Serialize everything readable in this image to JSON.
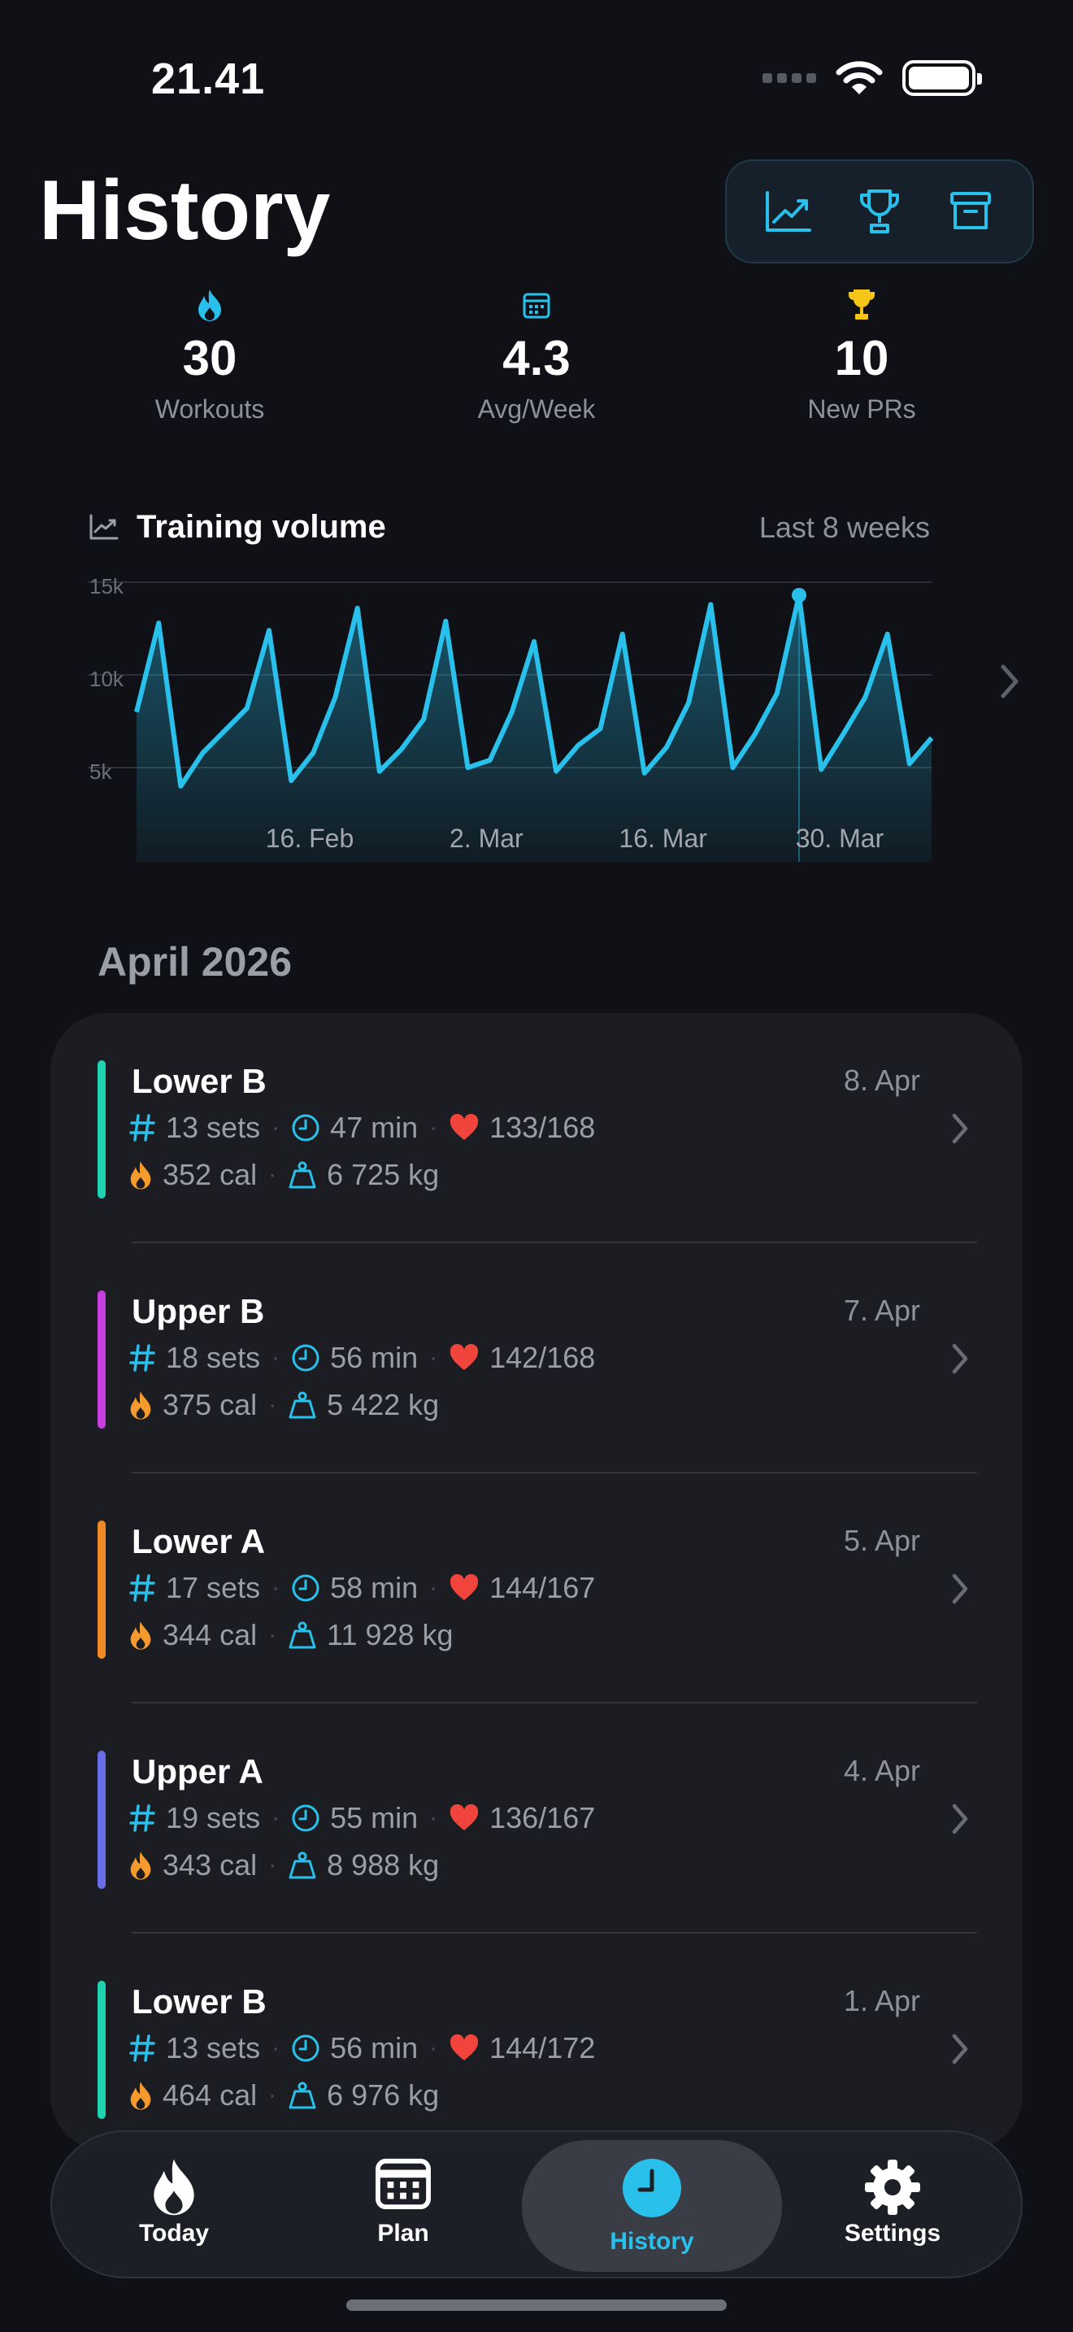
{
  "status_bar": {
    "time": "21.41"
  },
  "header": {
    "title": "History"
  },
  "toolbar": {
    "buttons": [
      {
        "icon": "chart-line-icon"
      },
      {
        "icon": "trophy-icon"
      },
      {
        "icon": "archive-icon"
      }
    ]
  },
  "stats": [
    {
      "value": "30",
      "label": "Workouts",
      "icon": "flame-icon",
      "color": "#29c1ec"
    },
    {
      "value": "4.3",
      "label": "Avg/Week",
      "icon": "calendar-icon",
      "color": "#29c1ec"
    },
    {
      "value": "10",
      "label": "New PRs",
      "icon": "trophy-icon",
      "color": "#f5c518"
    }
  ],
  "chart_data": {
    "type": "area",
    "title": "Training volume",
    "subtitle": "Last 8 weeks",
    "yticks": [
      "15k",
      "10k",
      "5k"
    ],
    "ylim": [
      0,
      15000
    ],
    "xticks": [
      "16. Feb",
      "2. Mar",
      "16. Mar",
      "30. Mar"
    ],
    "x_index_of_xticks": [
      6,
      14,
      22,
      30
    ],
    "values": [
      8000,
      12800,
      4000,
      5800,
      7000,
      8200,
      12400,
      4300,
      5800,
      8800,
      13600,
      4800,
      6000,
      7600,
      12900,
      5000,
      5400,
      8000,
      11800,
      4800,
      6200,
      7100,
      12200,
      4700,
      6100,
      8500,
      13800,
      5000,
      6800,
      9000,
      14300,
      4900,
      6800,
      8800,
      12200,
      5200,
      6600
    ],
    "highlight_index": 30,
    "color": "#29c1ec"
  },
  "history": {
    "month": "April 2026",
    "workouts": [
      {
        "name": "Lower B",
        "date": "8. Apr",
        "sets": "13 sets",
        "duration": "47 min",
        "hr": "133/168",
        "cal": "352 cal",
        "volume": "6 725 kg",
        "color": "#1fd3b0"
      },
      {
        "name": "Upper B",
        "date": "7. Apr",
        "sets": "18 sets",
        "duration": "56 min",
        "hr": "142/168",
        "cal": "375 cal",
        "volume": "5 422 kg",
        "color": "#c63ee0"
      },
      {
        "name": "Lower A",
        "date": "5. Apr",
        "sets": "17 sets",
        "duration": "58 min",
        "hr": "144/167",
        "cal": "344 cal",
        "volume": "11 928 kg",
        "color": "#f08a24"
      },
      {
        "name": "Upper A",
        "date": "4. Apr",
        "sets": "19 sets",
        "duration": "55 min",
        "hr": "136/167",
        "cal": "343 cal",
        "volume": "8 988 kg",
        "color": "#6b6ce8"
      },
      {
        "name": "Lower B",
        "date": "1. Apr",
        "sets": "13 sets",
        "duration": "56 min",
        "hr": "144/172",
        "cal": "464 cal",
        "volume": "6 976 kg",
        "color": "#1fd3b0"
      }
    ]
  },
  "tabbar": {
    "tabs": [
      {
        "label": "Today",
        "icon": "flame-icon"
      },
      {
        "label": "Plan",
        "icon": "calendar-icon"
      },
      {
        "label": "History",
        "icon": "clock-icon",
        "active": true
      },
      {
        "label": "Settings",
        "icon": "gear-icon"
      }
    ]
  }
}
